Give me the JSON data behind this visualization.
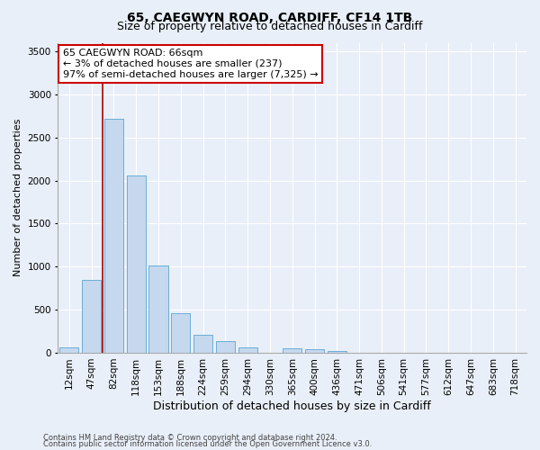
{
  "title1": "65, CAEGWYN ROAD, CARDIFF, CF14 1TB",
  "title2": "Size of property relative to detached houses in Cardiff",
  "xlabel": "Distribution of detached houses by size in Cardiff",
  "ylabel": "Number of detached properties",
  "categories": [
    "12sqm",
    "47sqm",
    "82sqm",
    "118sqm",
    "153sqm",
    "188sqm",
    "224sqm",
    "259sqm",
    "294sqm",
    "330sqm",
    "365sqm",
    "400sqm",
    "436sqm",
    "471sqm",
    "506sqm",
    "541sqm",
    "577sqm",
    "612sqm",
    "647sqm",
    "683sqm",
    "718sqm"
  ],
  "values": [
    60,
    850,
    2720,
    2060,
    1010,
    460,
    210,
    140,
    65,
    0,
    55,
    40,
    25,
    0,
    0,
    0,
    0,
    0,
    0,
    0,
    0
  ],
  "bar_color": "#c5d8ee",
  "bar_edge_color": "#6baed6",
  "vline_x": 1.5,
  "vline_color": "#aa0000",
  "annotation_text": "65 CAEGWYN ROAD: 66sqm\n← 3% of detached houses are smaller (237)\n97% of semi-detached houses are larger (7,325) →",
  "annotation_box_facecolor": "#ffffff",
  "annotation_box_edgecolor": "#cc0000",
  "ylim": [
    0,
    3600
  ],
  "yticks": [
    0,
    500,
    1000,
    1500,
    2000,
    2500,
    3000,
    3500
  ],
  "footer1": "Contains HM Land Registry data © Crown copyright and database right 2024.",
  "footer2": "Contains public sector information licensed under the Open Government Licence v3.0.",
  "bg_color": "#e8eff8",
  "plot_bg_color": "#e8eff8",
  "title1_fontsize": 10,
  "title2_fontsize": 9,
  "xlabel_fontsize": 9,
  "ylabel_fontsize": 8,
  "tick_fontsize": 7.5,
  "ann_fontsize": 8,
  "footer_fontsize": 6
}
